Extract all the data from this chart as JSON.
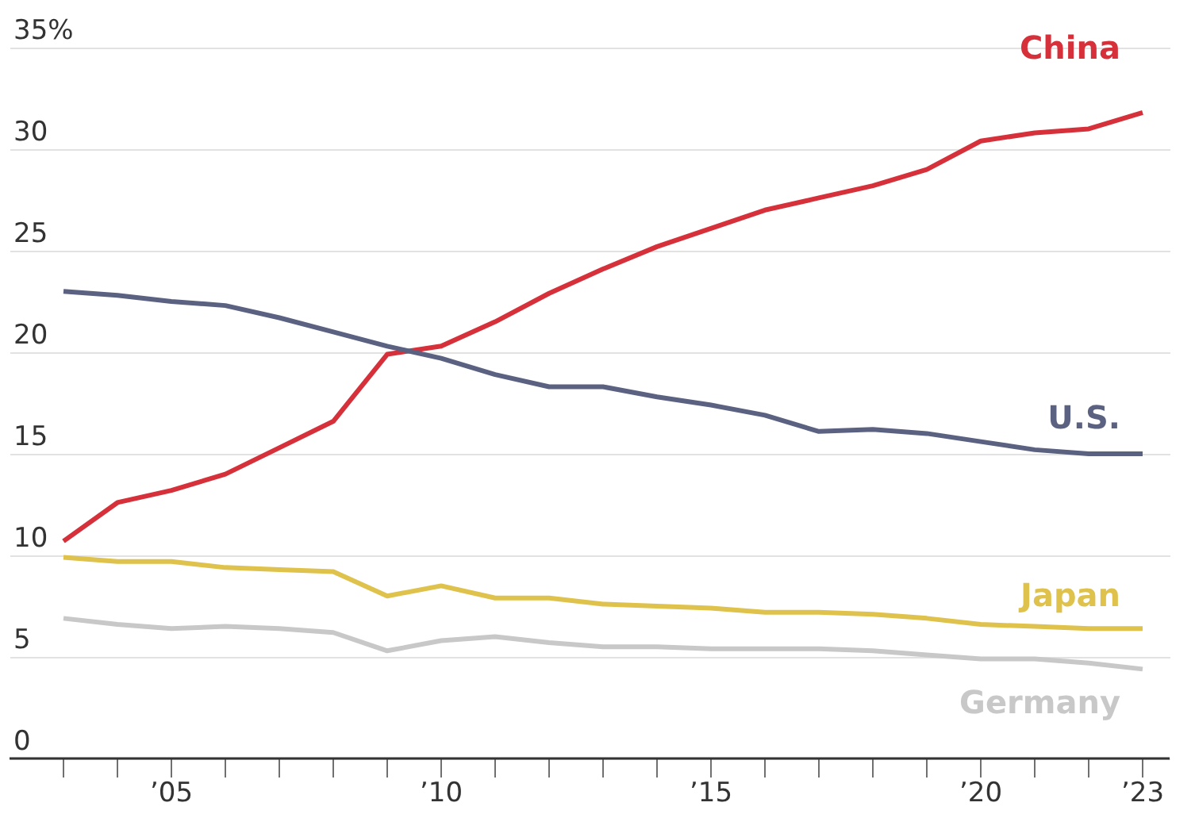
{
  "chart_data": {
    "type": "line",
    "x": [
      2003,
      2004,
      2005,
      2006,
      2007,
      2008,
      2009,
      2010,
      2011,
      2012,
      2013,
      2014,
      2015,
      2016,
      2017,
      2018,
      2019,
      2020,
      2021,
      2022,
      2023
    ],
    "series": [
      {
        "name": "China",
        "color": "#d6313a",
        "values": [
          10.7,
          12.6,
          13.2,
          14.0,
          15.3,
          16.6,
          19.9,
          20.3,
          21.5,
          22.9,
          24.1,
          25.2,
          26.1,
          27.0,
          27.6,
          28.2,
          29.0,
          30.4,
          30.8,
          31.0,
          31.8
        ]
      },
      {
        "name": "U.S.",
        "color": "#5b6180",
        "values": [
          23.0,
          22.8,
          22.5,
          22.3,
          21.7,
          21.0,
          20.3,
          19.7,
          18.9,
          18.3,
          18.3,
          17.8,
          17.4,
          16.9,
          16.1,
          16.2,
          16.0,
          15.6,
          15.2,
          15.0,
          15.0
        ]
      },
      {
        "name": "Japan",
        "color": "#dfc24c",
        "values": [
          9.9,
          9.7,
          9.7,
          9.4,
          9.3,
          9.2,
          8.0,
          8.5,
          7.9,
          7.9,
          7.6,
          7.5,
          7.4,
          7.2,
          7.2,
          7.1,
          6.9,
          6.6,
          6.5,
          6.4,
          6.4
        ]
      },
      {
        "name": "Germany",
        "color": "#c8c8c8",
        "values": [
          6.9,
          6.6,
          6.4,
          6.5,
          6.4,
          6.2,
          5.3,
          5.8,
          6.0,
          5.7,
          5.5,
          5.5,
          5.4,
          5.4,
          5.4,
          5.3,
          5.1,
          4.9,
          4.9,
          4.7,
          4.4
        ]
      }
    ],
    "xlim": [
      2002,
      2023.5
    ],
    "xticks": [
      {
        "value": 2003,
        "label": null
      },
      {
        "value": 2004,
        "label": null
      },
      {
        "value": 2005,
        "label": "’05"
      },
      {
        "value": 2006,
        "label": null
      },
      {
        "value": 2007,
        "label": null
      },
      {
        "value": 2008,
        "label": null
      },
      {
        "value": 2009,
        "label": null
      },
      {
        "value": 2010,
        "label": "’10"
      },
      {
        "value": 2011,
        "label": null
      },
      {
        "value": 2012,
        "label": null
      },
      {
        "value": 2013,
        "label": null
      },
      {
        "value": 2014,
        "label": null
      },
      {
        "value": 2015,
        "label": "’15"
      },
      {
        "value": 2016,
        "label": null
      },
      {
        "value": 2017,
        "label": null
      },
      {
        "value": 2018,
        "label": null
      },
      {
        "value": 2019,
        "label": null
      },
      {
        "value": 2020,
        "label": "’20"
      },
      {
        "value": 2021,
        "label": null
      },
      {
        "value": 2022,
        "label": null
      },
      {
        "value": 2023,
        "label": "’23"
      }
    ],
    "ylim": [
      0,
      35
    ],
    "yticks": [
      0,
      5,
      10,
      15,
      20,
      25,
      30,
      {
        "value": 35,
        "label": "35%"
      }
    ],
    "grid": "y",
    "marker": "none",
    "line_style": "solid"
  }
}
